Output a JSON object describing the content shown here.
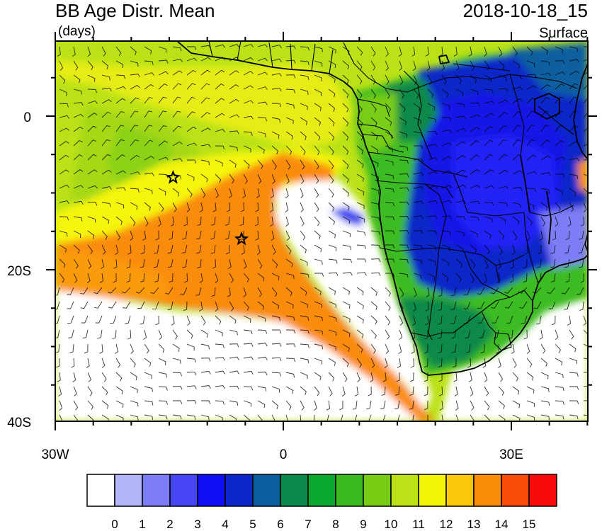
{
  "header": {
    "title": "BB Age Distr. Mean",
    "units": "(days)",
    "date": "2018-10-18_15",
    "level": "Surface"
  },
  "axes": {
    "x_ticks": [
      "30W",
      "0",
      "30E"
    ],
    "y_ticks": [
      "0",
      "20S",
      "40S"
    ]
  },
  "colorbar": {
    "labels": [
      "0",
      "1",
      "2",
      "3",
      "4",
      "5",
      "6",
      "7",
      "8",
      "9",
      "10",
      "11",
      "12",
      "13",
      "14",
      "15"
    ],
    "colors": [
      "#ffffff",
      "#b4b4f8",
      "#7d7df5",
      "#4646f5",
      "#0f0ff5",
      "#0a28c8",
      "#0a5ea0",
      "#0a8a4a",
      "#08a830",
      "#3cbb20",
      "#78cd14",
      "#bbe218",
      "#f5f50a",
      "#fac808",
      "#fa8c08",
      "#fa4b08",
      "#fa0a0a"
    ]
  },
  "markers": [
    {
      "name": "star-1",
      "lon": -14.5,
      "lat": -8.0
    },
    {
      "name": "star-2",
      "lon": -5.5,
      "lat": -16.0
    }
  ]
}
